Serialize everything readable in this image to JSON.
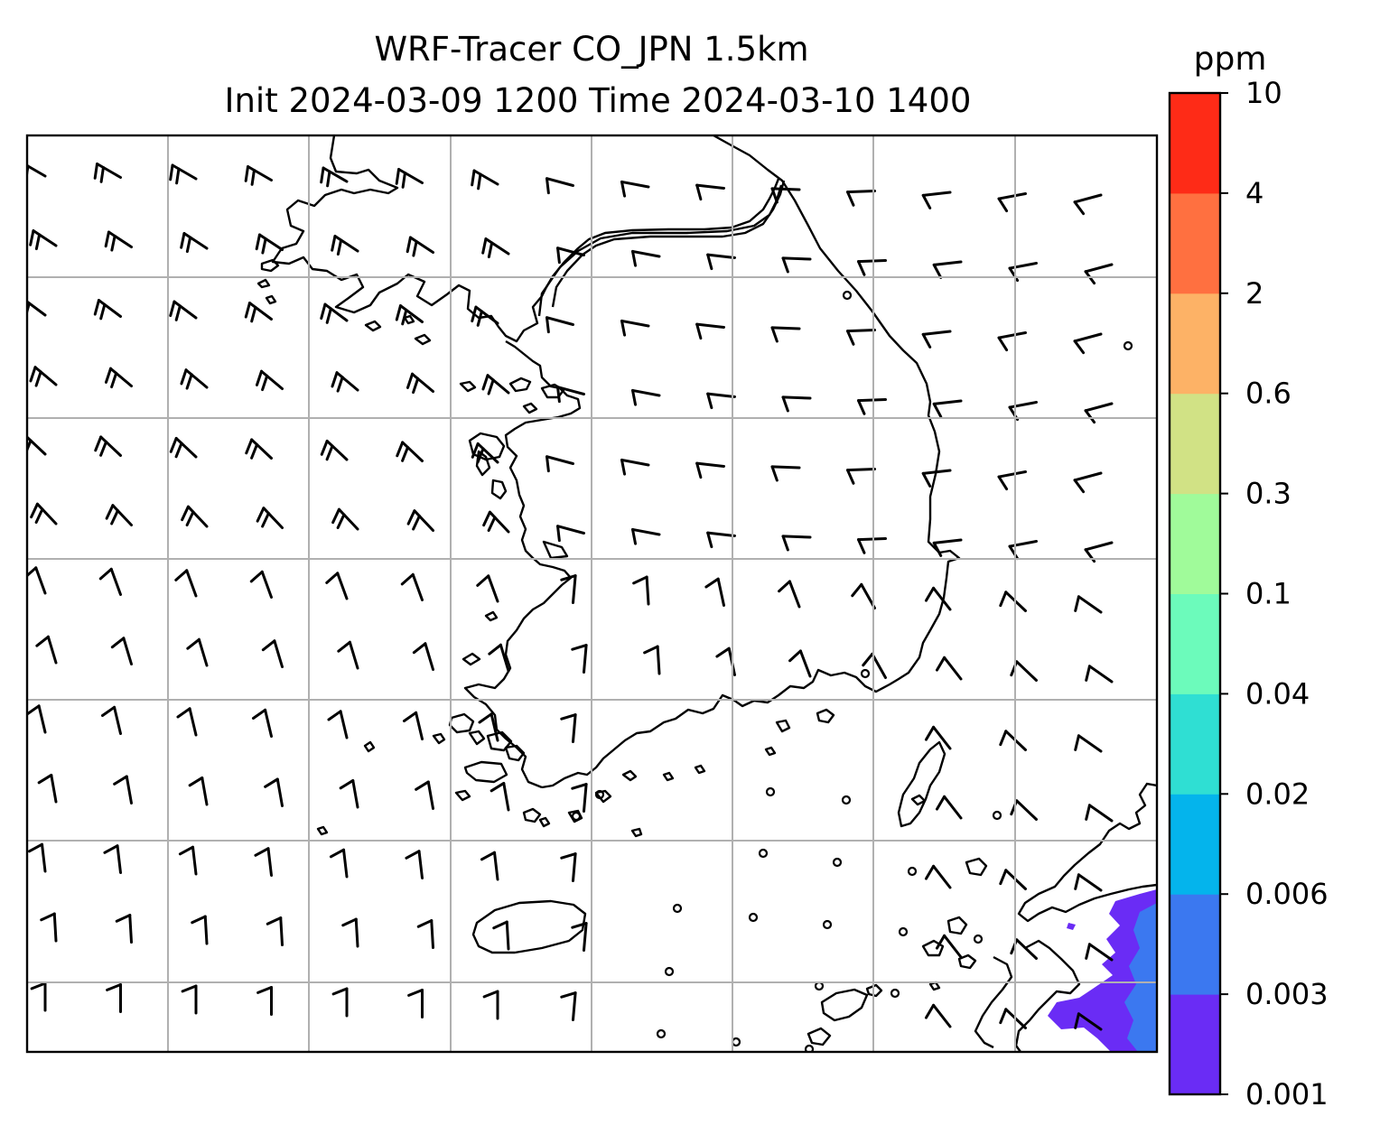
{
  "title": {
    "line1": "WRF-Tracer CO_JPN 1.5km",
    "line2": "Init 2024-03-09 1200 Time 2024-03-10 1400"
  },
  "map": {
    "type": "map",
    "region": "Korean Peninsula and western Japan",
    "gridlines": true,
    "wind_barbs": true,
    "tracer_field": "CO",
    "plume_location": "bottom-right (Kyushu)"
  },
  "colorbar": {
    "unit": "ppm",
    "levels": [
      "0.001",
      "0.003",
      "0.006",
      "0.02",
      "0.04",
      "0.1",
      "0.3",
      "0.6",
      "2",
      "4",
      "10"
    ],
    "colors": [
      "#6a2cf5",
      "#3b78f0",
      "#04b4ec",
      "#2fdfd3",
      "#6cfbbb",
      "#a0fb9a",
      "#d1e285",
      "#fdb266",
      "#ff7040",
      "#fe2b17"
    ]
  }
}
